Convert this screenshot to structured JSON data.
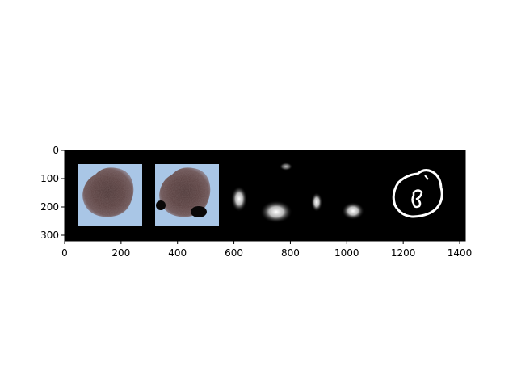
{
  "figure": {
    "xaxis": {
      "range": [
        0,
        1420
      ],
      "ticks": [
        0,
        200,
        400,
        600,
        800,
        1000,
        1200,
        1400
      ],
      "tick_labels": [
        "0",
        "200",
        "400",
        "600",
        "800",
        "1000",
        "1200",
        "1400"
      ]
    },
    "yaxis": {
      "range": [
        320,
        0
      ],
      "inverted": true,
      "ticks": [
        0,
        100,
        200,
        300
      ],
      "tick_labels": [
        "0",
        "100",
        "200",
        "300"
      ]
    },
    "background_color": "#000000",
    "panels": [
      {
        "name": "original-lesion-image",
        "kind": "color-image",
        "x_range": [
          50,
          280
        ],
        "y_range": [
          50,
          275
        ]
      },
      {
        "name": "lesion-image-with-dark-spots",
        "kind": "color-image",
        "x_range": [
          320,
          550
        ],
        "y_range": [
          50,
          275
        ]
      },
      {
        "name": "heatmap-left",
        "kind": "grayscale-heatmap",
        "x_range": [
          590,
          860
        ],
        "y_range": [
          40,
          290
        ]
      },
      {
        "name": "heatmap-right",
        "kind": "grayscale-heatmap",
        "x_range": [
          870,
          1080
        ],
        "y_range": [
          40,
          290
        ]
      },
      {
        "name": "lesion-contour",
        "kind": "binary-mask-outline",
        "x_range": [
          1150,
          1400
        ],
        "y_range": [
          40,
          290
        ]
      }
    ]
  }
}
